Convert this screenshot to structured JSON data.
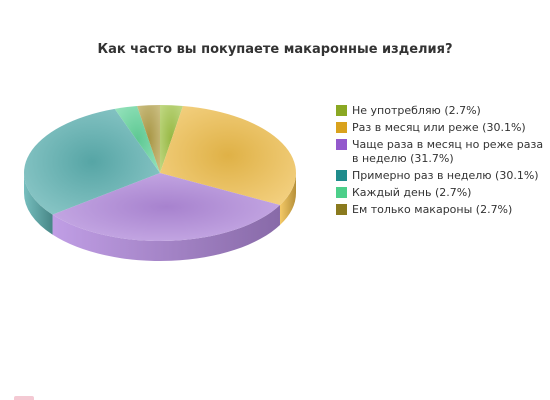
{
  "chart_data": {
    "type": "pie",
    "title": "Как часто вы покупаете макаронные изделия?",
    "legend_position": "right",
    "slices": [
      {
        "label": "Не употребляю (2.7%)",
        "value": 2.7,
        "color": "#a4c84a"
      },
      {
        "label": "Раз в месяц или реже (30.1%)",
        "value": 30.1,
        "color": "#f2c04c"
      },
      {
        "label": "Чаще раза в месяц но реже раза в неделю (31.7%)",
        "value": 31.7,
        "color": "#b58de0"
      },
      {
        "label": "Примерно раз в неделю (30.1%)",
        "value": 30.1,
        "color": "#5eb3b3"
      },
      {
        "label": "Каждый день (2.7%)",
        "value": 2.7,
        "color": "#66d9a0"
      },
      {
        "label": "Ем только макароны (2.7%)",
        "value": 2.7,
        "color": "#b5a24a"
      }
    ]
  },
  "legend_colors": [
    "#8aa823",
    "#d9a21d",
    "#9359cc",
    "#1f8c8c",
    "#4ccf8a",
    "#8a7a1e"
  ]
}
